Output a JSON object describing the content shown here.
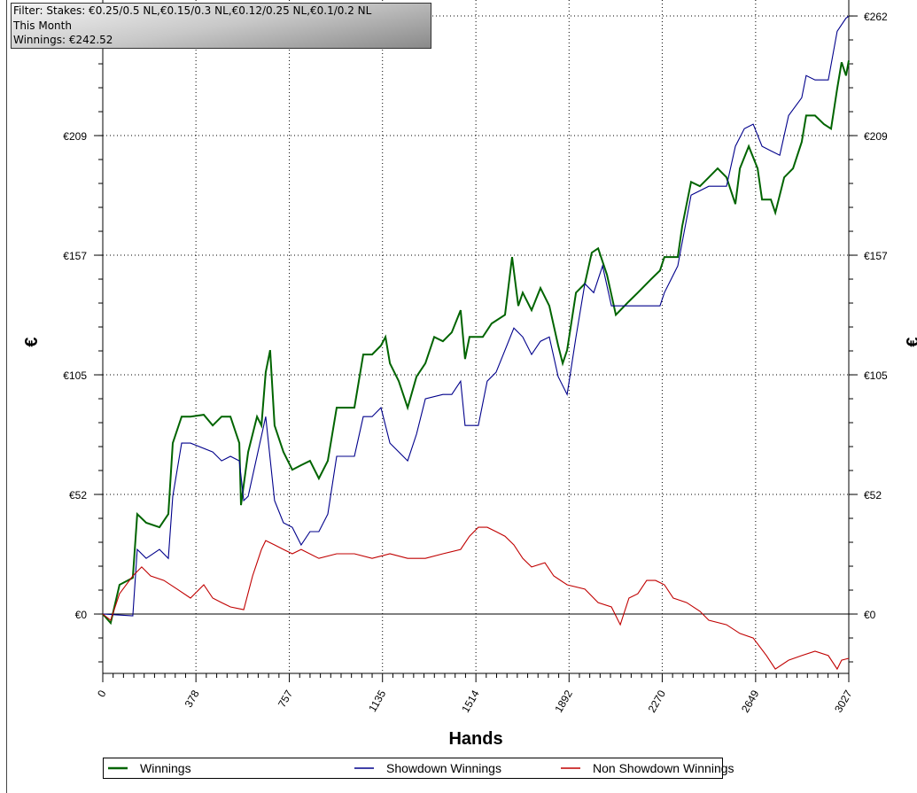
{
  "filter_box": {
    "line1": "Filter: Stakes: €0.25/0.5 NL,€0.15/0.3 NL,€0.12/0.25 NL,€0.1/0.2 NL",
    "line2": "This Month",
    "line3": "Winnings: €242.52"
  },
  "chart_data": {
    "type": "line",
    "xlabel": "Hands",
    "ylabel": "€",
    "xlim": [
      0,
      3027
    ],
    "ylim": [
      -26,
      269
    ],
    "x_ticks": [
      "0",
      "378",
      "757",
      "1135",
      "1514",
      "1892",
      "2270",
      "2649",
      "3027"
    ],
    "x_tick_values": [
      0,
      378,
      757,
      1135,
      1514,
      1892,
      2270,
      2649,
      3027
    ],
    "y_ticks": [
      "€0",
      "€52",
      "€105",
      "€157",
      "€209",
      "€262"
    ],
    "y_tick_values": [
      0,
      52.4,
      104.8,
      157.2,
      209.6,
      262
    ],
    "grid": true,
    "legend_position": "bottom",
    "series": [
      {
        "name": "Winnings",
        "color": "#006400",
        "points": [
          [
            0,
            0
          ],
          [
            32,
            -3.9
          ],
          [
            68,
            12.8
          ],
          [
            122,
            15.9
          ],
          [
            140,
            43.8
          ],
          [
            176,
            40.0
          ],
          [
            230,
            38.0
          ],
          [
            266,
            43.8
          ],
          [
            284,
            74.9
          ],
          [
            320,
            86.5
          ],
          [
            356,
            86.5
          ],
          [
            410,
            87.3
          ],
          [
            446,
            82.6
          ],
          [
            482,
            86.5
          ],
          [
            518,
            86.5
          ],
          [
            554,
            74.9
          ],
          [
            561,
            47.7
          ],
          [
            590,
            71.0
          ],
          [
            626,
            86.5
          ],
          [
            644,
            82.6
          ],
          [
            661,
            105.9
          ],
          [
            679,
            115.6
          ],
          [
            697,
            82.6
          ],
          [
            733,
            71.0
          ],
          [
            769,
            63.2
          ],
          [
            805,
            65.2
          ],
          [
            841,
            67.1
          ],
          [
            877,
            59.4
          ],
          [
            913,
            67.1
          ],
          [
            949,
            90.4
          ],
          [
            1021,
            90.4
          ],
          [
            1057,
            113.7
          ],
          [
            1093,
            113.7
          ],
          [
            1129,
            117.6
          ],
          [
            1147,
            121.4
          ],
          [
            1165,
            109.8
          ],
          [
            1201,
            102.0
          ],
          [
            1237,
            90.4
          ],
          [
            1273,
            104.0
          ],
          [
            1309,
            109.8
          ],
          [
            1345,
            121.4
          ],
          [
            1380,
            119.5
          ],
          [
            1416,
            123.4
          ],
          [
            1452,
            133.1
          ],
          [
            1470,
            111.7
          ],
          [
            1488,
            121.4
          ],
          [
            1542,
            121.4
          ],
          [
            1578,
            127.3
          ],
          [
            1632,
            131.1
          ],
          [
            1661,
            156.4
          ],
          [
            1686,
            135.0
          ],
          [
            1704,
            140.8
          ],
          [
            1740,
            133.1
          ],
          [
            1776,
            142.8
          ],
          [
            1812,
            135.0
          ],
          [
            1848,
            117.6
          ],
          [
            1866,
            109.8
          ],
          [
            1884,
            115.6
          ],
          [
            1920,
            140.8
          ],
          [
            1956,
            144.7
          ],
          [
            1984,
            158.3
          ],
          [
            2010,
            160.2
          ],
          [
            2046,
            148.6
          ],
          [
            2082,
            131.1
          ],
          [
            2135,
            137.0
          ],
          [
            2171,
            140.8
          ],
          [
            2225,
            146.7
          ],
          [
            2261,
            150.5
          ],
          [
            2279,
            156.4
          ],
          [
            2333,
            156.4
          ],
          [
            2351,
            169.9
          ],
          [
            2387,
            189.3
          ],
          [
            2423,
            187.4
          ],
          [
            2459,
            191.3
          ],
          [
            2495,
            195.2
          ],
          [
            2531,
            191.3
          ],
          [
            2567,
            179.6
          ],
          [
            2585,
            195.2
          ],
          [
            2621,
            204.9
          ],
          [
            2657,
            195.2
          ],
          [
            2675,
            181.6
          ],
          [
            2711,
            181.6
          ],
          [
            2729,
            175.8
          ],
          [
            2765,
            191.3
          ],
          [
            2801,
            195.2
          ],
          [
            2836,
            206.8
          ],
          [
            2854,
            218.4
          ],
          [
            2890,
            218.4
          ],
          [
            2926,
            214.6
          ],
          [
            2955,
            212.6
          ],
          [
            2980,
            230.1
          ],
          [
            2998,
            241.7
          ],
          [
            3016,
            235.9
          ],
          [
            3027,
            242.5
          ]
        ]
      },
      {
        "name": "Showdown Winnings",
        "color": "#00008b",
        "points": [
          [
            0,
            0
          ],
          [
            122,
            -0.8
          ],
          [
            140,
            28.3
          ],
          [
            176,
            24.4
          ],
          [
            230,
            28.3
          ],
          [
            266,
            24.4
          ],
          [
            284,
            51.6
          ],
          [
            320,
            74.9
          ],
          [
            356,
            74.9
          ],
          [
            446,
            71.0
          ],
          [
            482,
            67.1
          ],
          [
            518,
            69.1
          ],
          [
            554,
            67.1
          ],
          [
            572,
            49.7
          ],
          [
            590,
            51.6
          ],
          [
            661,
            86.5
          ],
          [
            697,
            49.7
          ],
          [
            733,
            40.0
          ],
          [
            769,
            38.0
          ],
          [
            805,
            30.3
          ],
          [
            841,
            36.1
          ],
          [
            877,
            36.1
          ],
          [
            913,
            43.8
          ],
          [
            949,
            69.1
          ],
          [
            1021,
            69.1
          ],
          [
            1057,
            86.5
          ],
          [
            1093,
            86.5
          ],
          [
            1129,
            90.4
          ],
          [
            1165,
            74.9
          ],
          [
            1237,
            67.1
          ],
          [
            1273,
            78.8
          ],
          [
            1309,
            94.3
          ],
          [
            1380,
            96.2
          ],
          [
            1416,
            96.2
          ],
          [
            1452,
            102.0
          ],
          [
            1470,
            82.6
          ],
          [
            1524,
            82.6
          ],
          [
            1560,
            102.0
          ],
          [
            1596,
            105.9
          ],
          [
            1632,
            115.6
          ],
          [
            1668,
            125.3
          ],
          [
            1704,
            121.4
          ],
          [
            1740,
            113.7
          ],
          [
            1776,
            119.5
          ],
          [
            1812,
            121.4
          ],
          [
            1848,
            104.0
          ],
          [
            1884,
            96.2
          ],
          [
            1920,
            121.4
          ],
          [
            1956,
            144.7
          ],
          [
            1992,
            140.8
          ],
          [
            2028,
            152.5
          ],
          [
            2064,
            135.0
          ],
          [
            2171,
            135.0
          ],
          [
            2261,
            135.0
          ],
          [
            2279,
            140.8
          ],
          [
            2333,
            152.5
          ],
          [
            2387,
            183.5
          ],
          [
            2459,
            187.4
          ],
          [
            2531,
            187.4
          ],
          [
            2567,
            204.9
          ],
          [
            2603,
            212.6
          ],
          [
            2639,
            214.6
          ],
          [
            2675,
            204.9
          ],
          [
            2711,
            202.9
          ],
          [
            2747,
            201.0
          ],
          [
            2783,
            218.4
          ],
          [
            2836,
            226.2
          ],
          [
            2854,
            235.9
          ],
          [
            2890,
            234.0
          ],
          [
            2944,
            234.0
          ],
          [
            2980,
            255.3
          ],
          [
            3016,
            261.1
          ],
          [
            3027,
            261.9
          ]
        ]
      },
      {
        "name": "Non Showdown Winnings",
        "color": "#c00000",
        "points": [
          [
            0,
            0
          ],
          [
            32,
            -2.7
          ],
          [
            68,
            8.9
          ],
          [
            122,
            16.7
          ],
          [
            158,
            20.6
          ],
          [
            194,
            16.7
          ],
          [
            248,
            14.7
          ],
          [
            302,
            10.9
          ],
          [
            356,
            7.0
          ],
          [
            410,
            12.8
          ],
          [
            446,
            7.0
          ],
          [
            482,
            5.0
          ],
          [
            518,
            3.1
          ],
          [
            572,
            1.9
          ],
          [
            608,
            16.7
          ],
          [
            644,
            28.3
          ],
          [
            661,
            32.2
          ],
          [
            697,
            30.3
          ],
          [
            733,
            28.3
          ],
          [
            769,
            26.4
          ],
          [
            805,
            28.3
          ],
          [
            877,
            24.4
          ],
          [
            949,
            26.4
          ],
          [
            1021,
            26.4
          ],
          [
            1093,
            24.4
          ],
          [
            1165,
            26.4
          ],
          [
            1237,
            24.4
          ],
          [
            1309,
            24.4
          ],
          [
            1380,
            26.4
          ],
          [
            1452,
            28.3
          ],
          [
            1488,
            34.1
          ],
          [
            1524,
            38.0
          ],
          [
            1560,
            38.0
          ],
          [
            1596,
            36.1
          ],
          [
            1632,
            34.1
          ],
          [
            1668,
            30.3
          ],
          [
            1704,
            24.4
          ],
          [
            1740,
            20.6
          ],
          [
            1794,
            22.5
          ],
          [
            1830,
            16.7
          ],
          [
            1884,
            12.8
          ],
          [
            1956,
            10.9
          ],
          [
            2010,
            5.0
          ],
          [
            2064,
            3.1
          ],
          [
            2100,
            -4.7
          ],
          [
            2135,
            7.0
          ],
          [
            2171,
            8.9
          ],
          [
            2207,
            14.7
          ],
          [
            2243,
            14.7
          ],
          [
            2279,
            12.8
          ],
          [
            2315,
            7.0
          ],
          [
            2369,
            5.0
          ],
          [
            2423,
            1.2
          ],
          [
            2459,
            -2.7
          ],
          [
            2531,
            -4.7
          ],
          [
            2585,
            -8.5
          ],
          [
            2639,
            -10.5
          ],
          [
            2693,
            -18.2
          ],
          [
            2729,
            -24.1
          ],
          [
            2783,
            -20.2
          ],
          [
            2836,
            -18.2
          ],
          [
            2890,
            -16.3
          ],
          [
            2944,
            -18.2
          ],
          [
            2980,
            -24.1
          ],
          [
            2998,
            -20.2
          ],
          [
            3027,
            -19.4
          ]
        ]
      }
    ]
  }
}
